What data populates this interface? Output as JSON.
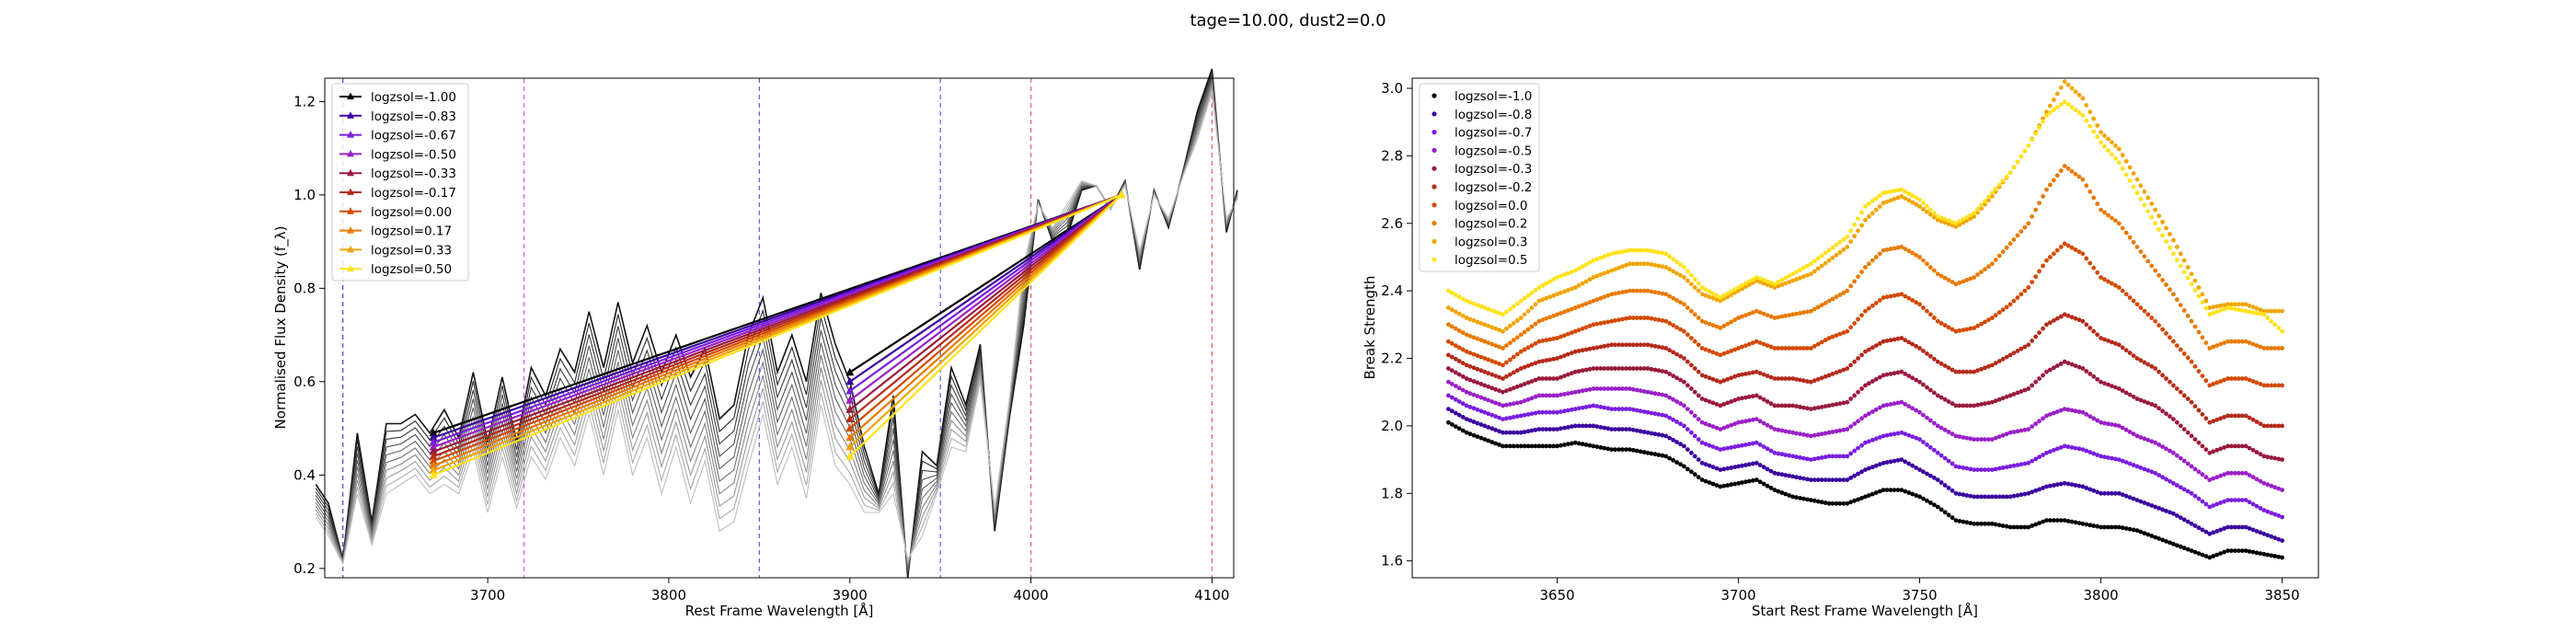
{
  "figure": {
    "title": "tage=10.00, dust2=0.0"
  },
  "chart_data": [
    {
      "type": "line",
      "xlabel": "Rest Frame Wavelength [Å]",
      "ylabel": "Normalised Flux Density (f_λ)",
      "xlim": [
        3610,
        4112
      ],
      "ylim": [
        0.18,
        1.25
      ],
      "xticks": [
        3700,
        3800,
        3900,
        4000,
        4100
      ],
      "yticks": [
        0.2,
        0.4,
        0.6,
        0.8,
        1.0,
        1.2
      ],
      "grid": false,
      "legend_position": "top-left",
      "vlines": [
        {
          "x": 3620,
          "color": "#7f3fd6"
        },
        {
          "x": 3720,
          "color": "#cc66dd"
        },
        {
          "x": 3850,
          "color": "#5a6ef0"
        },
        {
          "x": 3950,
          "color": "#5a6ef0"
        },
        {
          "x": 4000,
          "color": "#ee6666"
        },
        {
          "x": 4100,
          "color": "#ee6666"
        }
      ],
      "spectrum_x": [
        3605,
        3612,
        3620,
        3628,
        3636,
        3644,
        3652,
        3660,
        3668,
        3676,
        3684,
        3692,
        3700,
        3708,
        3716,
        3724,
        3732,
        3740,
        3748,
        3756,
        3764,
        3772,
        3780,
        3788,
        3796,
        3804,
        3812,
        3820,
        3828,
        3836,
        3844,
        3852,
        3860,
        3868,
        3876,
        3884,
        3892,
        3900,
        3908,
        3916,
        3924,
        3932,
        3940,
        3948,
        3956,
        3964,
        3972,
        3980,
        3988,
        3996,
        4004,
        4012,
        4020,
        4028,
        4036,
        4044,
        4052,
        4060,
        4068,
        4076,
        4084,
        4092,
        4100,
        4108,
        4114
      ],
      "spectrum_top": [
        0.38,
        0.34,
        0.22,
        0.49,
        0.3,
        0.51,
        0.51,
        0.53,
        0.49,
        0.54,
        0.48,
        0.62,
        0.47,
        0.61,
        0.47,
        0.63,
        0.57,
        0.67,
        0.62,
        0.75,
        0.63,
        0.77,
        0.64,
        0.72,
        0.62,
        0.7,
        0.61,
        0.67,
        0.52,
        0.55,
        0.7,
        0.78,
        0.62,
        0.7,
        0.6,
        0.79,
        0.68,
        0.6,
        0.46,
        0.36,
        0.57,
        0.18,
        0.45,
        0.42,
        0.63,
        0.55,
        0.68,
        0.28,
        0.52,
        0.72,
        0.99,
        0.9,
        0.91,
        1.01,
        1.02,
        0.97,
        1.03,
        0.84,
        1.01,
        0.93,
        1.05,
        1.18,
        1.27,
        0.92,
        1.01
      ],
      "spectrum_bottom": [
        0.31,
        0.27,
        0.21,
        0.36,
        0.25,
        0.36,
        0.38,
        0.4,
        0.36,
        0.38,
        0.36,
        0.45,
        0.32,
        0.44,
        0.33,
        0.44,
        0.39,
        0.48,
        0.42,
        0.53,
        0.4,
        0.54,
        0.4,
        0.48,
        0.36,
        0.46,
        0.34,
        0.43,
        0.28,
        0.3,
        0.42,
        0.53,
        0.38,
        0.46,
        0.35,
        0.55,
        0.42,
        0.38,
        0.32,
        0.32,
        0.36,
        0.22,
        0.27,
        0.36,
        0.46,
        0.45,
        0.6,
        0.33,
        0.56,
        0.85,
        0.98,
        0.93,
        0.98,
        1.03,
        1.02,
        0.97,
        1.02,
        0.88,
        1.0,
        0.95,
        1.04,
        1.12,
        1.22,
        0.95,
        0.99
      ],
      "n_spectra": 10,
      "series": [
        {
          "name": "logzsol=-1.00",
          "color": "#000000",
          "blue": {
            "x": 3670,
            "y": 0.49
          },
          "red": {
            "x": 4050,
            "y": 1.0
          },
          "blue2": {
            "x": 3900,
            "y": 0.62
          }
        },
        {
          "name": "logzsol=-0.83",
          "color": "#3a00a0",
          "blue": {
            "x": 3670,
            "y": 0.48
          },
          "red": {
            "x": 4050,
            "y": 1.0
          },
          "blue2": {
            "x": 3900,
            "y": 0.6
          }
        },
        {
          "name": "logzsol=-0.67",
          "color": "#7a1de0",
          "blue": {
            "x": 3670,
            "y": 0.47
          },
          "red": {
            "x": 4050,
            "y": 1.0
          },
          "blue2": {
            "x": 3900,
            "y": 0.58
          }
        },
        {
          "name": "logzsol=-0.50",
          "color": "#9a1fc8",
          "blue": {
            "x": 3670,
            "y": 0.46
          },
          "red": {
            "x": 4050,
            "y": 1.0
          },
          "blue2": {
            "x": 3900,
            "y": 0.56
          }
        },
        {
          "name": "logzsol=-0.33",
          "color": "#9a1a3c",
          "blue": {
            "x": 3670,
            "y": 0.45
          },
          "red": {
            "x": 4050,
            "y": 1.0
          },
          "blue2": {
            "x": 3900,
            "y": 0.54
          }
        },
        {
          "name": "logzsol=-0.17",
          "color": "#b52a1a",
          "blue": {
            "x": 3670,
            "y": 0.44
          },
          "red": {
            "x": 4050,
            "y": 1.0
          },
          "blue2": {
            "x": 3900,
            "y": 0.52
          }
        },
        {
          "name": "logzsol=0.00",
          "color": "#d34a00",
          "blue": {
            "x": 3670,
            "y": 0.43
          },
          "red": {
            "x": 4050,
            "y": 1.0
          },
          "blue2": {
            "x": 3900,
            "y": 0.5
          }
        },
        {
          "name": "logzsol=0.17",
          "color": "#e87a00",
          "blue": {
            "x": 3670,
            "y": 0.42
          },
          "red": {
            "x": 4050,
            "y": 1.0
          },
          "blue2": {
            "x": 3900,
            "y": 0.48
          }
        },
        {
          "name": "logzsol=0.33",
          "color": "#f0a500",
          "blue": {
            "x": 3670,
            "y": 0.41
          },
          "red": {
            "x": 4050,
            "y": 1.0
          },
          "blue2": {
            "x": 3900,
            "y": 0.46
          }
        },
        {
          "name": "logzsol=0.50",
          "color": "#ffe21a",
          "blue": {
            "x": 3670,
            "y": 0.4
          },
          "red": {
            "x": 4050,
            "y": 1.0
          },
          "blue2": {
            "x": 3900,
            "y": 0.44
          }
        }
      ]
    },
    {
      "type": "scatter",
      "xlabel": "Start Rest Frame Wavelength [Å]",
      "ylabel": "Break Strength",
      "xlim": [
        3610,
        3860
      ],
      "ylim": [
        1.55,
        3.03
      ],
      "xticks": [
        3650,
        3700,
        3750,
        3800,
        3850
      ],
      "yticks": [
        1.6,
        1.8,
        2.0,
        2.2,
        2.4,
        2.6,
        2.8,
        3.0
      ],
      "grid": false,
      "legend_position": "top-left",
      "x": [
        3620,
        3625,
        3630,
        3635,
        3640,
        3645,
        3650,
        3655,
        3660,
        3665,
        3670,
        3675,
        3680,
        3685,
        3690,
        3695,
        3700,
        3705,
        3710,
        3715,
        3720,
        3725,
        3730,
        3735,
        3740,
        3745,
        3750,
        3755,
        3760,
        3765,
        3770,
        3775,
        3780,
        3785,
        3790,
        3795,
        3800,
        3805,
        3810,
        3815,
        3820,
        3825,
        3830,
        3835,
        3840,
        3845,
        3850
      ],
      "series": [
        {
          "name": "logzsol=-1.0",
          "color": "#000000",
          "values": [
            2.01,
            1.98,
            1.96,
            1.94,
            1.94,
            1.94,
            1.94,
            1.95,
            1.94,
            1.93,
            1.93,
            1.92,
            1.91,
            1.88,
            1.84,
            1.82,
            1.83,
            1.84,
            1.81,
            1.79,
            1.78,
            1.77,
            1.77,
            1.79,
            1.81,
            1.81,
            1.79,
            1.76,
            1.72,
            1.71,
            1.71,
            1.7,
            1.7,
            1.72,
            1.72,
            1.71,
            1.7,
            1.7,
            1.69,
            1.67,
            1.65,
            1.63,
            1.61,
            1.63,
            1.63,
            1.62,
            1.61
          ]
        },
        {
          "name": "logzsol=-0.8",
          "color": "#3a00a0",
          "values": [
            2.05,
            2.02,
            2.0,
            1.98,
            1.98,
            1.99,
            1.99,
            2.0,
            2.0,
            1.99,
            1.99,
            1.98,
            1.97,
            1.94,
            1.89,
            1.87,
            1.88,
            1.89,
            1.86,
            1.85,
            1.84,
            1.84,
            1.84,
            1.87,
            1.89,
            1.9,
            1.87,
            1.84,
            1.8,
            1.79,
            1.79,
            1.79,
            1.8,
            1.82,
            1.83,
            1.82,
            1.8,
            1.8,
            1.78,
            1.76,
            1.74,
            1.71,
            1.68,
            1.7,
            1.7,
            1.68,
            1.66
          ]
        },
        {
          "name": "logzsol=-0.7",
          "color": "#7a1de0",
          "values": [
            2.09,
            2.06,
            2.04,
            2.02,
            2.03,
            2.04,
            2.04,
            2.05,
            2.06,
            2.05,
            2.05,
            2.04,
            2.03,
            2.0,
            1.95,
            1.93,
            1.94,
            1.95,
            1.92,
            1.91,
            1.9,
            1.91,
            1.91,
            1.95,
            1.97,
            1.98,
            1.96,
            1.92,
            1.88,
            1.87,
            1.87,
            1.88,
            1.89,
            1.92,
            1.94,
            1.93,
            1.91,
            1.9,
            1.88,
            1.86,
            1.83,
            1.8,
            1.76,
            1.78,
            1.78,
            1.75,
            1.73
          ]
        },
        {
          "name": "logzsol=-0.5",
          "color": "#9a1fc8",
          "values": [
            2.13,
            2.1,
            2.08,
            2.06,
            2.07,
            2.09,
            2.09,
            2.1,
            2.11,
            2.11,
            2.11,
            2.1,
            2.09,
            2.06,
            2.01,
            1.99,
            2.01,
            2.02,
            1.99,
            1.98,
            1.97,
            1.98,
            1.99,
            2.03,
            2.06,
            2.07,
            2.04,
            2.0,
            1.97,
            1.96,
            1.96,
            1.98,
            1.99,
            2.03,
            2.05,
            2.04,
            2.01,
            2.0,
            1.97,
            1.95,
            1.92,
            1.88,
            1.84,
            1.86,
            1.86,
            1.83,
            1.81
          ]
        },
        {
          "name": "logzsol=-0.3",
          "color": "#9a1a3c",
          "values": [
            2.17,
            2.14,
            2.12,
            2.1,
            2.12,
            2.14,
            2.14,
            2.16,
            2.17,
            2.17,
            2.17,
            2.17,
            2.16,
            2.13,
            2.08,
            2.06,
            2.08,
            2.09,
            2.06,
            2.06,
            2.05,
            2.06,
            2.07,
            2.12,
            2.15,
            2.16,
            2.13,
            2.09,
            2.06,
            2.06,
            2.07,
            2.09,
            2.11,
            2.16,
            2.19,
            2.17,
            2.13,
            2.11,
            2.08,
            2.06,
            2.02,
            1.97,
            1.92,
            1.94,
            1.94,
            1.91,
            1.9
          ]
        },
        {
          "name": "logzsol=-0.2",
          "color": "#b52a1a",
          "values": [
            2.21,
            2.18,
            2.16,
            2.14,
            2.17,
            2.19,
            2.2,
            2.22,
            2.23,
            2.24,
            2.24,
            2.24,
            2.23,
            2.2,
            2.15,
            2.13,
            2.15,
            2.16,
            2.14,
            2.14,
            2.13,
            2.15,
            2.17,
            2.22,
            2.25,
            2.26,
            2.23,
            2.19,
            2.16,
            2.16,
            2.18,
            2.21,
            2.24,
            2.3,
            2.33,
            2.31,
            2.26,
            2.24,
            2.2,
            2.17,
            2.12,
            2.07,
            2.01,
            2.03,
            2.03,
            2.0,
            2.0
          ]
        },
        {
          "name": "logzsol=0.0",
          "color": "#d34a00",
          "values": [
            2.25,
            2.22,
            2.2,
            2.18,
            2.22,
            2.25,
            2.26,
            2.28,
            2.3,
            2.31,
            2.32,
            2.32,
            2.31,
            2.28,
            2.23,
            2.21,
            2.23,
            2.25,
            2.23,
            2.23,
            2.23,
            2.26,
            2.28,
            2.34,
            2.38,
            2.39,
            2.36,
            2.31,
            2.28,
            2.29,
            2.32,
            2.36,
            2.41,
            2.49,
            2.54,
            2.51,
            2.44,
            2.41,
            2.36,
            2.31,
            2.25,
            2.19,
            2.12,
            2.14,
            2.14,
            2.12,
            2.12
          ]
        },
        {
          "name": "logzsol=0.2",
          "color": "#e87a00",
          "values": [
            2.3,
            2.27,
            2.25,
            2.23,
            2.27,
            2.31,
            2.33,
            2.35,
            2.37,
            2.39,
            2.4,
            2.4,
            2.39,
            2.36,
            2.31,
            2.29,
            2.32,
            2.34,
            2.32,
            2.33,
            2.34,
            2.37,
            2.4,
            2.47,
            2.52,
            2.53,
            2.5,
            2.45,
            2.42,
            2.44,
            2.48,
            2.54,
            2.6,
            2.7,
            2.77,
            2.73,
            2.64,
            2.6,
            2.53,
            2.46,
            2.39,
            2.31,
            2.23,
            2.25,
            2.25,
            2.23,
            2.23
          ]
        },
        {
          "name": "logzsol=0.3",
          "color": "#f0a500",
          "values": [
            2.35,
            2.32,
            2.3,
            2.28,
            2.32,
            2.37,
            2.39,
            2.41,
            2.44,
            2.46,
            2.48,
            2.48,
            2.47,
            2.44,
            2.39,
            2.37,
            2.4,
            2.43,
            2.41,
            2.43,
            2.45,
            2.49,
            2.53,
            2.61,
            2.66,
            2.68,
            2.65,
            2.61,
            2.59,
            2.62,
            2.68,
            2.75,
            2.83,
            2.93,
            3.02,
            2.97,
            2.87,
            2.82,
            2.73,
            2.64,
            2.55,
            2.45,
            2.35,
            2.36,
            2.36,
            2.34,
            2.34
          ]
        },
        {
          "name": "logzsol=0.5",
          "color": "#ffe21a",
          "values": [
            2.4,
            2.37,
            2.35,
            2.33,
            2.37,
            2.41,
            2.44,
            2.46,
            2.49,
            2.51,
            2.52,
            2.52,
            2.51,
            2.47,
            2.41,
            2.38,
            2.41,
            2.44,
            2.42,
            2.45,
            2.48,
            2.52,
            2.56,
            2.65,
            2.69,
            2.7,
            2.67,
            2.62,
            2.6,
            2.63,
            2.69,
            2.75,
            2.83,
            2.92,
            2.96,
            2.92,
            2.84,
            2.78,
            2.69,
            2.6,
            2.51,
            2.42,
            2.33,
            2.35,
            2.34,
            2.33,
            2.28
          ]
        }
      ]
    }
  ]
}
